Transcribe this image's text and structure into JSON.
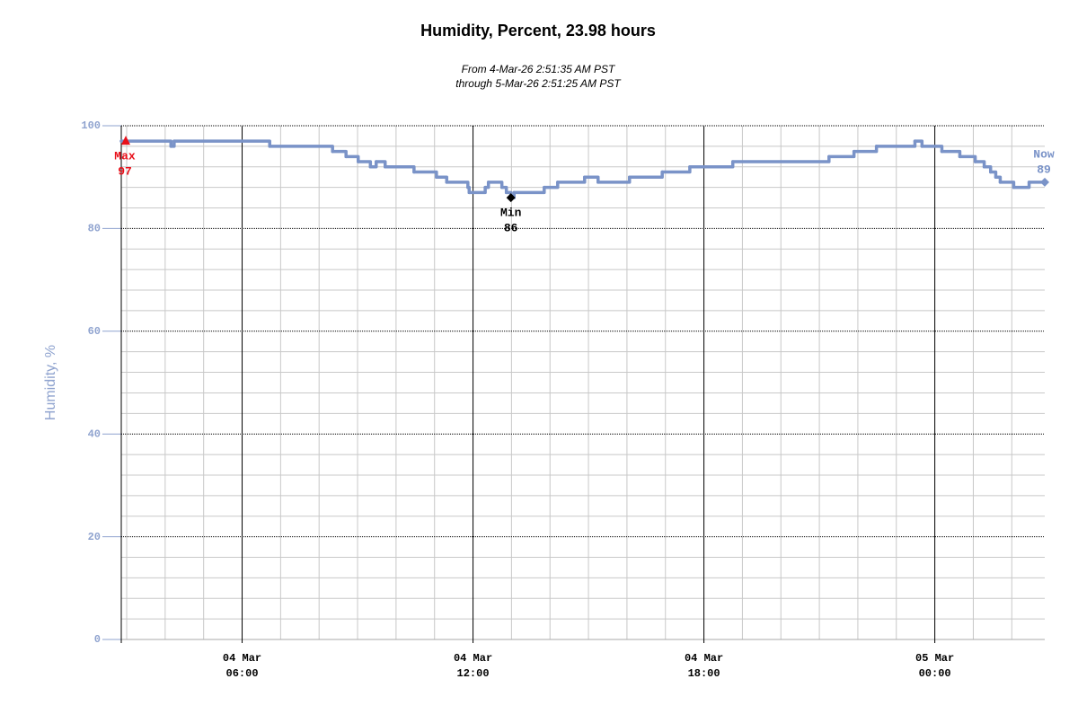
{
  "chart_data": {
    "type": "line",
    "title": "Humidity, Percent, 23.98 hours",
    "subtitle": [
      "From 4-Mar-26 2:51:35 AM PST",
      "through 5-Mar-26 2:51:25 AM PST"
    ],
    "y_label": "Humidity, %",
    "xlim": [
      "2026-03-04T02:51:35",
      "2026-03-05T02:51:25"
    ],
    "ylim": [
      0,
      100
    ],
    "yticks": [
      0,
      20,
      40,
      60,
      80,
      100
    ],
    "yminorticks": [
      4,
      8,
      12,
      16,
      24,
      28,
      32,
      36,
      44,
      48,
      52,
      56,
      64,
      68,
      72,
      76,
      84,
      88,
      92,
      96
    ],
    "xticks": [
      {
        "value": "2026-03-04T06:00",
        "label": [
          "04 Mar",
          "06:00"
        ]
      },
      {
        "value": "2026-03-04T12:00",
        "label": [
          "04 Mar",
          "12:00"
        ]
      },
      {
        "value": "2026-03-04T18:00",
        "label": [
          "04 Mar",
          "18:00"
        ]
      },
      {
        "value": "2026-03-05T00:00",
        "label": [
          "05 Mar",
          "00:00"
        ]
      }
    ],
    "xminorticks": [
      "2026-03-04T03:00",
      "2026-03-04T04:00",
      "2026-03-04T05:00",
      "2026-03-04T07:00",
      "2026-03-04T08:00",
      "2026-03-04T09:00",
      "2026-03-04T10:00",
      "2026-03-04T11:00",
      "2026-03-04T13:00",
      "2026-03-04T14:00",
      "2026-03-04T15:00",
      "2026-03-04T16:00",
      "2026-03-04T17:00",
      "2026-03-04T19:00",
      "2026-03-04T20:00",
      "2026-03-04T21:00",
      "2026-03-04T22:00",
      "2026-03-04T23:00",
      "2026-03-05T01:00",
      "2026-03-05T02:00"
    ],
    "grid": true,
    "series": [
      {
        "name": "Humidity",
        "color": "#7a93c8",
        "step": true,
        "x": [
          "2026-03-04T02:51:35",
          "2026-03-04T04:09",
          "2026-03-04T04:14",
          "2026-03-04T06:43",
          "2026-03-04T08:21",
          "2026-03-04T08:42",
          "2026-03-04T09:01",
          "2026-03-04T09:20",
          "2026-03-04T09:29",
          "2026-03-04T09:43",
          "2026-03-04T10:28",
          "2026-03-04T11:03",
          "2026-03-04T11:19",
          "2026-03-04T11:52",
          "2026-03-04T11:54",
          "2026-03-04T12:19",
          "2026-03-04T12:24",
          "2026-03-04T12:45",
          "2026-03-04T12:52",
          "2026-03-04T12:59",
          "2026-03-04T13:04",
          "2026-03-04T13:51",
          "2026-03-04T14:12",
          "2026-03-04T14:54",
          "2026-03-04T15:15",
          "2026-03-04T16:04",
          "2026-03-04T16:55",
          "2026-03-04T17:38",
          "2026-03-04T18:45",
          "2026-03-04T21:15",
          "2026-03-04T21:54",
          "2026-03-04T22:29",
          "2026-03-04T23:29",
          "2026-03-04T23:40",
          "2026-03-05T00:11",
          "2026-03-05T00:39",
          "2026-03-05T01:03",
          "2026-03-05T01:17",
          "2026-03-05T01:27",
          "2026-03-05T01:35",
          "2026-03-05T01:42",
          "2026-03-05T02:03",
          "2026-03-05T02:27",
          "2026-03-05T02:51:25"
        ],
        "values": [
          97,
          96,
          97,
          96,
          95,
          94,
          93,
          92,
          93,
          92,
          91,
          90,
          89,
          88,
          87,
          88,
          89,
          88,
          87,
          86,
          87,
          88,
          89,
          90,
          89,
          90,
          91,
          92,
          93,
          94,
          95,
          96,
          97,
          96,
          95,
          94,
          93,
          92,
          91,
          90,
          89,
          88,
          89,
          89
        ]
      }
    ],
    "annotations": [
      {
        "label": "Max",
        "value": 97,
        "x": "2026-03-04T02:51:35",
        "color": "#e8101a",
        "marker": "triangle"
      },
      {
        "label": "Min",
        "value": 86,
        "x": "2026-03-04T12:59",
        "color": "#000000",
        "marker": "diamond"
      },
      {
        "label": "Now",
        "value": 89,
        "x": "2026-03-05T02:51:25",
        "color": "#7a93c8",
        "marker": "diamond"
      }
    ]
  }
}
